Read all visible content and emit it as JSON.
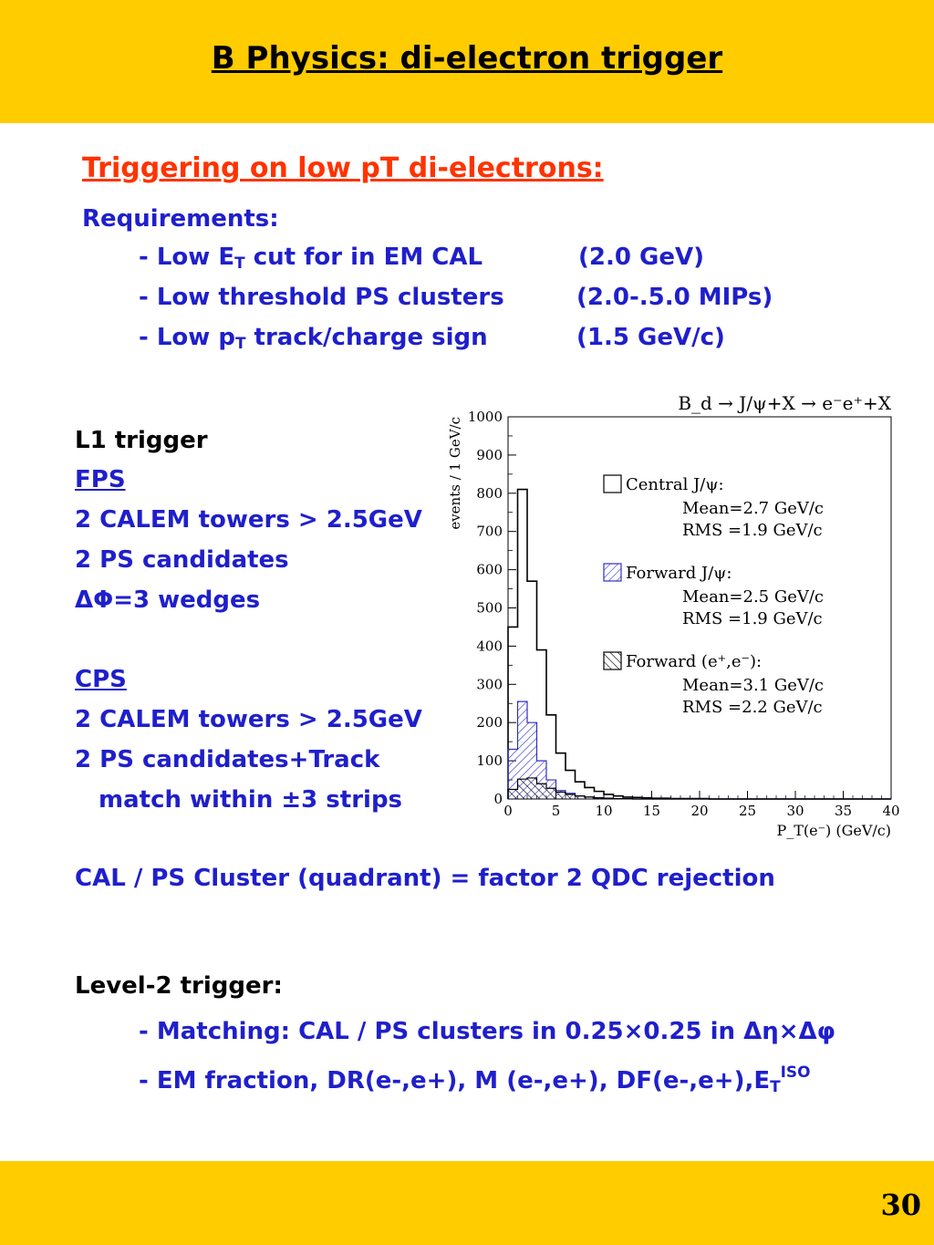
{
  "header": {
    "title": "B Physics: di-electron trigger"
  },
  "section_title": "Triggering on low pT di-electrons:",
  "requirements": {
    "label": "Requirements:",
    "items": [
      {
        "prefix": "- Low E",
        "sub": "T",
        "suffix": " cut for in EM CAL",
        "value": "(2.0 GeV)"
      },
      {
        "text": "- Low threshold PS clusters",
        "value": "(2.0-.5.0 MIPs)"
      },
      {
        "prefix": "- Low p",
        "sub": "T",
        "suffix": " track/charge sign",
        "value": "(1.5 GeV/c)"
      }
    ]
  },
  "l1": {
    "heading": "L1 trigger",
    "fps": {
      "label": "FPS",
      "lines": [
        "2 CALEM towers > 2.5GeV",
        "2 PS candidates",
        "ΔΦ=3 wedges"
      ]
    },
    "cps": {
      "label": "CPS",
      "lines": [
        "2 CALEM towers > 2.5GeV",
        "2 PS candidates+Track",
        "match within ±3 strips"
      ]
    },
    "note": "CAL / PS Cluster (quadrant) = factor 2 QDC rejection"
  },
  "level2": {
    "heading": "Level-2 trigger:",
    "line1": "- Matching: CAL / PS clusters in 0.25×0.25 in Δη×Δφ",
    "line2_main": "- EM fraction, DR(e-,e+), M (e-,e+), DF(e-,e+),E",
    "line2_sub": "T",
    "line2_sup": "ISO"
  },
  "footer": {
    "page_number": "30"
  },
  "colors": {
    "band": "#FFCC00",
    "text_blue": "#1F1FCC",
    "text_red": "#FF3300",
    "hatch": "#4040D0"
  },
  "chart_data": {
    "type": "bar",
    "title": "B_d → J/ψ+X → e⁻e⁺+X",
    "xlabel": "P_T(e⁻) (GeV/c)",
    "ylabel": "events / 1 GeV/c",
    "xlim": [
      0,
      40
    ],
    "ylim": [
      0,
      1000
    ],
    "x_ticks": [
      "0",
      "5",
      "10",
      "15",
      "20",
      "25",
      "30",
      "35",
      "40"
    ],
    "y_ticks": [
      "0",
      "100",
      "200",
      "300",
      "400",
      "500",
      "600",
      "700",
      "800",
      "900",
      "1000"
    ],
    "bin_width": 1,
    "series": [
      {
        "name": "Central J/ψ:",
        "mean": "Mean=2.7 GeV/c",
        "rms": "RMS =1.9 GeV/c",
        "style": "open",
        "values": [
          450,
          810,
          570,
          390,
          220,
          120,
          75,
          45,
          30,
          20,
          12,
          8,
          5,
          4,
          3,
          2,
          2,
          1,
          1,
          1,
          1,
          0,
          0,
          0,
          0,
          0,
          0,
          0,
          0,
          0,
          0,
          0,
          0,
          0,
          0,
          0,
          0,
          0,
          0,
          0
        ]
      },
      {
        "name": "Forward J/ψ:",
        "mean": "Mean=2.5 GeV/c",
        "rms": "RMS =1.9 GeV/c",
        "style": "hatch-blue",
        "values": [
          130,
          255,
          200,
          100,
          50,
          22,
          15,
          8,
          5,
          3,
          2,
          1,
          1,
          0,
          0,
          0,
          0,
          0,
          0,
          0,
          0,
          0,
          0,
          0,
          0,
          0,
          0,
          0,
          0,
          0,
          0,
          0,
          0,
          0,
          0,
          0,
          0,
          0,
          0,
          0
        ]
      },
      {
        "name": "Forward (e⁺,e⁻):",
        "mean": "Mean=3.1 GeV/c",
        "rms": "RMS =2.2 GeV/c",
        "style": "hatch-black",
        "values": [
          25,
          52,
          55,
          40,
          28,
          18,
          12,
          8,
          5,
          3,
          2,
          1,
          1,
          0,
          0,
          0,
          0,
          0,
          0,
          0,
          0,
          0,
          0,
          0,
          0,
          0,
          0,
          0,
          0,
          0,
          0,
          0,
          0,
          0,
          0,
          0,
          0,
          0,
          0,
          0
        ]
      }
    ]
  }
}
